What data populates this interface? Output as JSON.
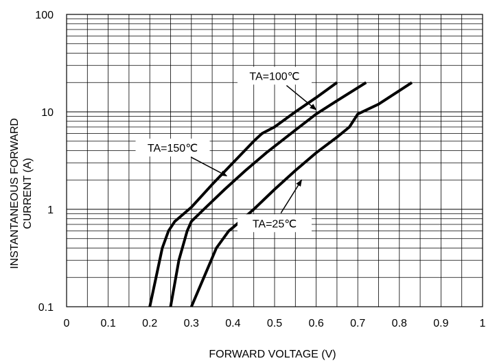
{
  "chart_data": {
    "type": "line",
    "xlabel": "FORWARD VOLTAGE (V)",
    "ylabel_lines": [
      "INSTANTANEOUS FORWARD",
      "CURRENT (A)"
    ],
    "xlim": [
      0,
      1
    ],
    "ylim": [
      0.1,
      100
    ],
    "y_scale": "log",
    "grid": true,
    "x_ticks": [
      {
        "value": 0,
        "label": "0"
      },
      {
        "value": 0.1,
        "label": "0.1"
      },
      {
        "value": 0.2,
        "label": "0.2"
      },
      {
        "value": 0.3,
        "label": "0.3"
      },
      {
        "value": 0.4,
        "label": "0.4"
      },
      {
        "value": 0.5,
        "label": "0.5"
      },
      {
        "value": 0.6,
        "label": "0.6"
      },
      {
        "value": 0.7,
        "label": "0.7"
      },
      {
        "value": 0.8,
        "label": "0.8"
      },
      {
        "value": 0.9,
        "label": "0.9"
      },
      {
        "value": 1,
        "label": "1"
      }
    ],
    "y_ticks": [
      {
        "value": 0.1,
        "label": "0.1"
      },
      {
        "value": 1,
        "label": "1"
      },
      {
        "value": 10,
        "label": "10"
      },
      {
        "value": 100,
        "label": "100"
      }
    ],
    "series": [
      {
        "name": "TA=150℃",
        "x": [
          0.2,
          0.215,
          0.23,
          0.245,
          0.26,
          0.3,
          0.35,
          0.4,
          0.45,
          0.47,
          0.5,
          0.55,
          0.6,
          0.65
        ],
        "y": [
          0.1,
          0.2,
          0.4,
          0.6,
          0.75,
          1.05,
          1.8,
          3.0,
          5.0,
          6.0,
          7.0,
          10.0,
          14.0,
          20.0
        ]
      },
      {
        "name": "TA=100℃",
        "x": [
          0.25,
          0.27,
          0.29,
          0.3,
          0.33,
          0.38,
          0.43,
          0.48,
          0.55,
          0.6,
          0.65,
          0.72
        ],
        "y": [
          0.1,
          0.3,
          0.6,
          0.75,
          1.0,
          1.6,
          2.5,
          3.8,
          6.5,
          9.5,
          13.0,
          20.0
        ]
      },
      {
        "name": "TA=25℃",
        "x": [
          0.3,
          0.33,
          0.36,
          0.39,
          0.4,
          0.45,
          0.5,
          0.55,
          0.6,
          0.65,
          0.68,
          0.7,
          0.75,
          0.83
        ],
        "y": [
          0.1,
          0.2,
          0.4,
          0.6,
          0.65,
          1.0,
          1.6,
          2.5,
          3.8,
          5.5,
          7.0,
          9.5,
          12.0,
          20.0
        ]
      }
    ],
    "annotations": [
      {
        "text": "TA=100℃",
        "series": "TA=100℃",
        "anchor_x": 0.5,
        "anchor_y": 23.5,
        "arrow_to_x": 0.6,
        "arrow_to_y": 10.5
      },
      {
        "text": "TA=150℃",
        "series": "TA=150℃",
        "anchor_x": 0.255,
        "anchor_y": 4.3,
        "arrow_to_x": 0.385,
        "arrow_to_y": 2.2
      },
      {
        "text": "TA=25℃",
        "series": "TA=25℃",
        "anchor_x": 0.5,
        "anchor_y": 0.72,
        "arrow_to_x": 0.565,
        "arrow_to_y": 2.0
      }
    ],
    "line_color": "#000000"
  }
}
